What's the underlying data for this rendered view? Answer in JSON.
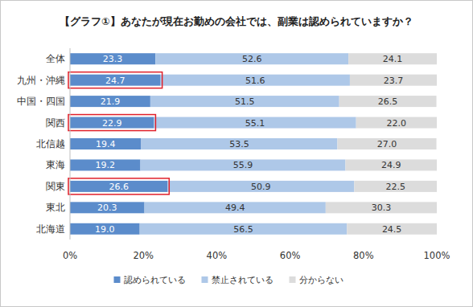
{
  "chart_data": {
    "type": "bar",
    "orientation": "horizontal",
    "stacked": true,
    "data_labels": true,
    "grid": false,
    "legend": "bottom",
    "title": "【グラフ①】あなたが現在お勤めの会社では、副業は認められていますか？",
    "categories": [
      "全体",
      "九州・沖縄",
      "中国・四国",
      "関西",
      "北信越",
      "東海",
      "関東",
      "東北",
      "北海道"
    ],
    "highlights": [
      "九州・沖縄",
      "関西",
      "関東"
    ],
    "series": [
      {
        "name": "認められている",
        "color": "#5b8ccb",
        "values": [
          23.3,
          24.7,
          21.9,
          22.9,
          19.4,
          19.2,
          26.6,
          20.3,
          19.0
        ],
        "value_labels": [
          "23.3",
          "24.7",
          "21.9",
          "22.9",
          "19.4",
          "19.2",
          "26.6",
          "20.3",
          "19.0"
        ]
      },
      {
        "name": "禁止されている",
        "color": "#aec8e8",
        "values": [
          52.6,
          51.6,
          51.5,
          55.1,
          53.5,
          55.9,
          50.9,
          49.4,
          56.5
        ],
        "value_labels": [
          "52.6",
          "51.6",
          "51.5",
          "55.1",
          "53.5",
          "55.9",
          "50.9",
          "49.4",
          "56.5"
        ]
      },
      {
        "name": "分からない",
        "color": "#dcdcdc",
        "values": [
          24.1,
          23.7,
          26.5,
          22.0,
          27.0,
          24.9,
          22.5,
          30.3,
          24.5
        ],
        "value_labels": [
          "24.1",
          "23.7",
          "26.5",
          "22.0",
          "27.0",
          "24.9",
          "22.5",
          "30.3",
          "24.5"
        ]
      }
    ],
    "xlim": [
      0,
      100
    ],
    "xticks": [
      {
        "value": 0,
        "label": "0%"
      },
      {
        "value": 20,
        "label": "20%"
      },
      {
        "value": 40,
        "label": "40%"
      },
      {
        "value": 60,
        "label": "60%"
      },
      {
        "value": 80,
        "label": "80%"
      },
      {
        "value": 100,
        "label": "100%"
      }
    ]
  }
}
